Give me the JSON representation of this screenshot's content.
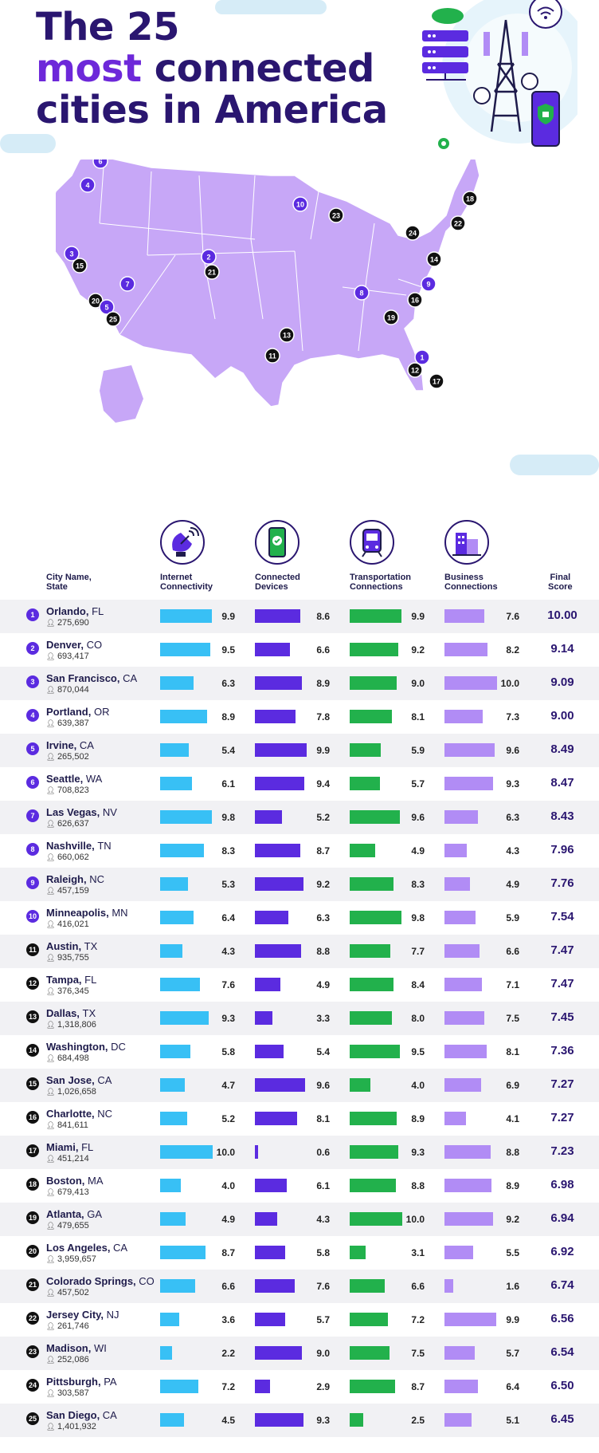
{
  "title": {
    "line1": "The 25",
    "accent": "most",
    "line2_rest": " connected",
    "line3": "cities in America"
  },
  "colors": {
    "internet": "#38c0f5",
    "devices": "#5b2be0",
    "transport": "#22b14c",
    "business": "#b18cf5",
    "map_fill": "#c7a7f7",
    "marker_purple": "#5b2be0",
    "marker_black": "#111111",
    "title": "#2a1670"
  },
  "columns": {
    "city": "City Name,\nState",
    "internet": "Internet\nConnectivity",
    "devices": "Connected\nDevices",
    "transport": "Transportation\nConnections",
    "business": "Business\nConnections",
    "final": "Final\nScore"
  },
  "icons": {
    "internet": "satellite-dish-icon",
    "devices": "smartphone-check-icon",
    "transport": "train-icon",
    "business": "buildings-icon",
    "population": "person-icon",
    "header_art": "server-tower-phone-icon"
  },
  "chart_data": {
    "type": "table",
    "columns": [
      "Rank",
      "City",
      "State",
      "Population",
      "Internet Connectivity",
      "Connected Devices",
      "Transportation Connections",
      "Business Connections",
      "Final Score"
    ],
    "rows": [
      {
        "rank": "1",
        "city": "Orlando",
        "state": "FL",
        "population": "275,690",
        "internet": 9.9,
        "devices": 8.6,
        "transport": 9.9,
        "business": 7.6,
        "internet_label": "9.9",
        "devices_label": "8.6",
        "transport_label": "9.9",
        "business_label": "7.6",
        "score": "10.00"
      },
      {
        "rank": "2",
        "city": "Denver",
        "state": "CO",
        "population": "693,417",
        "internet": 9.5,
        "devices": 6.6,
        "transport": 9.2,
        "business": 8.2,
        "internet_label": "9.5",
        "devices_label": "6.6",
        "transport_label": "9.2",
        "business_label": "8.2",
        "score": "9.14"
      },
      {
        "rank": "3",
        "city": "San Francisco",
        "state": "CA",
        "population": "870,044",
        "internet": 6.3,
        "devices": 8.9,
        "transport": 9.0,
        "business": 10.0,
        "internet_label": "6.3",
        "devices_label": "8.9",
        "transport_label": "9.0",
        "business_label": "10.0",
        "score": "9.09"
      },
      {
        "rank": "4",
        "city": "Portland",
        "state": "OR",
        "population": "639,387",
        "internet": 8.9,
        "devices": 7.8,
        "transport": 8.1,
        "business": 7.3,
        "internet_label": "8.9",
        "devices_label": "7.8",
        "transport_label": "8.1",
        "business_label": "7.3",
        "score": "9.00"
      },
      {
        "rank": "5",
        "city": "Irvine",
        "state": "CA",
        "population": "265,502",
        "internet": 5.4,
        "devices": 9.9,
        "transport": 5.9,
        "business": 9.6,
        "internet_label": "5.4",
        "devices_label": "9.9",
        "transport_label": "5.9",
        "business_label": "9.6",
        "score": "8.49"
      },
      {
        "rank": "6",
        "city": "Seattle",
        "state": "WA",
        "population": "708,823",
        "internet": 6.1,
        "devices": 9.4,
        "transport": 5.7,
        "business": 9.3,
        "internet_label": "6.1",
        "devices_label": "9.4",
        "transport_label": "5.7",
        "business_label": "9.3",
        "score": "8.47"
      },
      {
        "rank": "7",
        "city": "Las Vegas",
        "state": "NV",
        "population": "626,637",
        "internet": 9.8,
        "devices": 5.2,
        "transport": 9.6,
        "business": 6.3,
        "internet_label": "9.8",
        "devices_label": "5.2",
        "transport_label": "9.6",
        "business_label": "6.3",
        "score": "8.43"
      },
      {
        "rank": "8",
        "city": "Nashville",
        "state": "TN",
        "population": "660,062",
        "internet": 8.3,
        "devices": 8.7,
        "transport": 4.9,
        "business": 4.3,
        "internet_label": "8.3",
        "devices_label": "8.7",
        "transport_label": "4.9",
        "business_label": "4.3",
        "score": "7.96"
      },
      {
        "rank": "9",
        "city": "Raleigh",
        "state": "NC",
        "population": "457,159",
        "internet": 5.3,
        "devices": 9.2,
        "transport": 8.3,
        "business": 4.9,
        "internet_label": "5.3",
        "devices_label": "9.2",
        "transport_label": "8.3",
        "business_label": "4.9",
        "score": "7.76"
      },
      {
        "rank": "10",
        "city": "Minneapolis",
        "state": "MN",
        "population": "416,021",
        "internet": 6.4,
        "devices": 6.3,
        "transport": 9.8,
        "business": 5.9,
        "internet_label": "6.4",
        "devices_label": "6.3",
        "transport_label": "9.8",
        "business_label": "5.9",
        "score": "7.54"
      },
      {
        "rank": "11",
        "city": "Austin",
        "state": "TX",
        "population": "935,755",
        "internet": 4.3,
        "devices": 8.8,
        "transport": 7.7,
        "business": 6.6,
        "internet_label": "4.3",
        "devices_label": "8.8",
        "transport_label": "7.7",
        "business_label": "6.6",
        "score": "7.47"
      },
      {
        "rank": "12",
        "city": "Tampa",
        "state": "FL",
        "population": "376,345",
        "internet": 7.6,
        "devices": 4.9,
        "transport": 8.4,
        "business": 7.1,
        "internet_label": "7.6",
        "devices_label": "4.9",
        "transport_label": "8.4",
        "business_label": "7.1",
        "score": "7.47"
      },
      {
        "rank": "13",
        "city": "Dallas",
        "state": "TX",
        "population": "1,318,806",
        "internet": 9.3,
        "devices": 3.3,
        "transport": 8.0,
        "business": 7.5,
        "internet_label": "9.3",
        "devices_label": "3.3",
        "transport_label": "8.0",
        "business_label": "7.5",
        "score": "7.45"
      },
      {
        "rank": "14",
        "city": "Washington",
        "state": "DC",
        "population": "684,498",
        "internet": 5.8,
        "devices": 5.4,
        "transport": 9.5,
        "business": 8.1,
        "internet_label": "5.8",
        "devices_label": "5.4",
        "transport_label": "9.5",
        "business_label": "8.1",
        "score": "7.36"
      },
      {
        "rank": "15",
        "city": "San Jose",
        "state": "CA",
        "population": "1,026,658",
        "internet": 4.7,
        "devices": 9.6,
        "transport": 4.0,
        "business": 6.9,
        "internet_label": "4.7",
        "devices_label": "9.6",
        "transport_label": "4.0",
        "business_label": "6.9",
        "score": "7.27"
      },
      {
        "rank": "16",
        "city": "Charlotte",
        "state": "NC",
        "population": "841,611",
        "internet": 5.2,
        "devices": 8.1,
        "transport": 8.9,
        "business": 4.1,
        "internet_label": "5.2",
        "devices_label": "8.1",
        "transport_label": "8.9",
        "business_label": "4.1",
        "score": "7.27"
      },
      {
        "rank": "17",
        "city": "Miami",
        "state": "FL",
        "population": "451,214",
        "internet": 10.0,
        "devices": 0.6,
        "transport": 9.3,
        "business": 8.8,
        "internet_label": "10.0",
        "devices_label": "0.6",
        "transport_label": "9.3",
        "business_label": "8.8",
        "score": "7.23"
      },
      {
        "rank": "18",
        "city": "Boston",
        "state": "MA",
        "population": "679,413",
        "internet": 4.0,
        "devices": 6.1,
        "transport": 8.8,
        "business": 8.9,
        "internet_label": "4.0",
        "devices_label": "6.1",
        "transport_label": "8.8",
        "business_label": "8.9",
        "score": "6.98"
      },
      {
        "rank": "19",
        "city": "Atlanta",
        "state": "GA",
        "population": "479,655",
        "internet": 4.9,
        "devices": 4.3,
        "transport": 10.0,
        "business": 9.2,
        "internet_label": "4.9",
        "devices_label": "4.3",
        "transport_label": "10.0",
        "business_label": "9.2",
        "score": "6.94"
      },
      {
        "rank": "20",
        "city": "Los Angeles",
        "state": "CA",
        "population": "3,959,657",
        "internet": 8.7,
        "devices": 5.8,
        "transport": 3.1,
        "business": 5.5,
        "internet_label": "8.7",
        "devices_label": "5.8",
        "transport_label": "3.1",
        "business_label": "5.5",
        "score": "6.92"
      },
      {
        "rank": "21",
        "city": "Colorado Springs",
        "state": "CO",
        "population": "457,502",
        "internet": 6.6,
        "devices": 7.6,
        "transport": 6.6,
        "business": 1.6,
        "internet_label": "6.6",
        "devices_label": "7.6",
        "transport_label": "6.6",
        "business_label": "1.6",
        "score": "6.74"
      },
      {
        "rank": "22",
        "city": "Jersey City",
        "state": "NJ",
        "population": "261,746",
        "internet": 3.6,
        "devices": 5.7,
        "transport": 7.2,
        "business": 9.9,
        "internet_label": "3.6",
        "devices_label": "5.7",
        "transport_label": "7.2",
        "business_label": "9.9",
        "score": "6.56"
      },
      {
        "rank": "23",
        "city": "Madison",
        "state": "WI",
        "population": "252,086",
        "internet": 2.2,
        "devices": 9.0,
        "transport": 7.5,
        "business": 5.7,
        "internet_label": "2.2",
        "devices_label": "9.0",
        "transport_label": "7.5",
        "business_label": "5.7",
        "score": "6.54"
      },
      {
        "rank": "24",
        "city": "Pittsburgh",
        "state": "PA",
        "population": "303,587",
        "internet": 7.2,
        "devices": 2.9,
        "transport": 8.7,
        "business": 6.4,
        "internet_label": "7.2",
        "devices_label": "2.9",
        "transport_label": "8.7",
        "business_label": "6.4",
        "score": "6.50"
      },
      {
        "rank": "25",
        "city": "San Diego",
        "state": "CA",
        "population": "1,401,932",
        "internet": 4.5,
        "devices": 9.3,
        "transport": 2.5,
        "business": 5.1,
        "internet_label": "4.5",
        "devices_label": "9.3",
        "transport_label": "2.5",
        "business_label": "5.1",
        "score": "6.45"
      }
    ],
    "scale_max": 10
  },
  "map_markers": [
    "6",
    "4",
    "3",
    "15",
    "2",
    "21",
    "7",
    "20",
    "5",
    "25",
    "10",
    "23",
    "18",
    "22",
    "24",
    "14",
    "8",
    "9",
    "16",
    "19",
    "13",
    "11",
    "1",
    "12",
    "17"
  ]
}
